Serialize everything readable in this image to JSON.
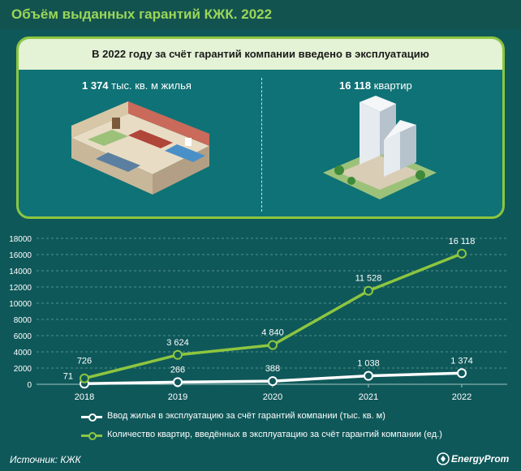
{
  "title": "Объём выданных гарантий КЖК. 2022",
  "panel": {
    "title": "В 2022 году за счёт гарантий компании введено в эксплуатацию",
    "stat_left": {
      "value": "1 374",
      "unit": "тыс. кв. м жилья"
    },
    "stat_right": {
      "value": "16 118",
      "unit": "квартир"
    }
  },
  "chart_data": {
    "type": "line",
    "x": [
      "2018",
      "2019",
      "2020",
      "2021",
      "2022"
    ],
    "ylim": [
      0,
      18000
    ],
    "yticks": [
      "0",
      "2000",
      "4000",
      "6000",
      "8000",
      "10000",
      "12000",
      "14000",
      "16000",
      "18000"
    ],
    "series": [
      {
        "name": "Ввод жилья в эксплуатацию за счёт гарантий компании (тыс. кв. м)",
        "values": [
          71,
          266,
          388,
          1038,
          1374
        ],
        "labels": [
          "71",
          "266",
          "388",
          "1 038",
          "1 374"
        ],
        "color": "#ffffff"
      },
      {
        "name": "Количество квартир, введённых в эксплуатацию за счёт гарантий компании (ед.)",
        "values": [
          726,
          3624,
          4840,
          11528,
          16118
        ],
        "labels": [
          "726",
          "3 624",
          "4 840",
          "11 528",
          "16 118"
        ],
        "color": "#8dc63f"
      }
    ]
  },
  "footer": {
    "source": "Источник: КЖК",
    "brand": "EnergyProm"
  }
}
